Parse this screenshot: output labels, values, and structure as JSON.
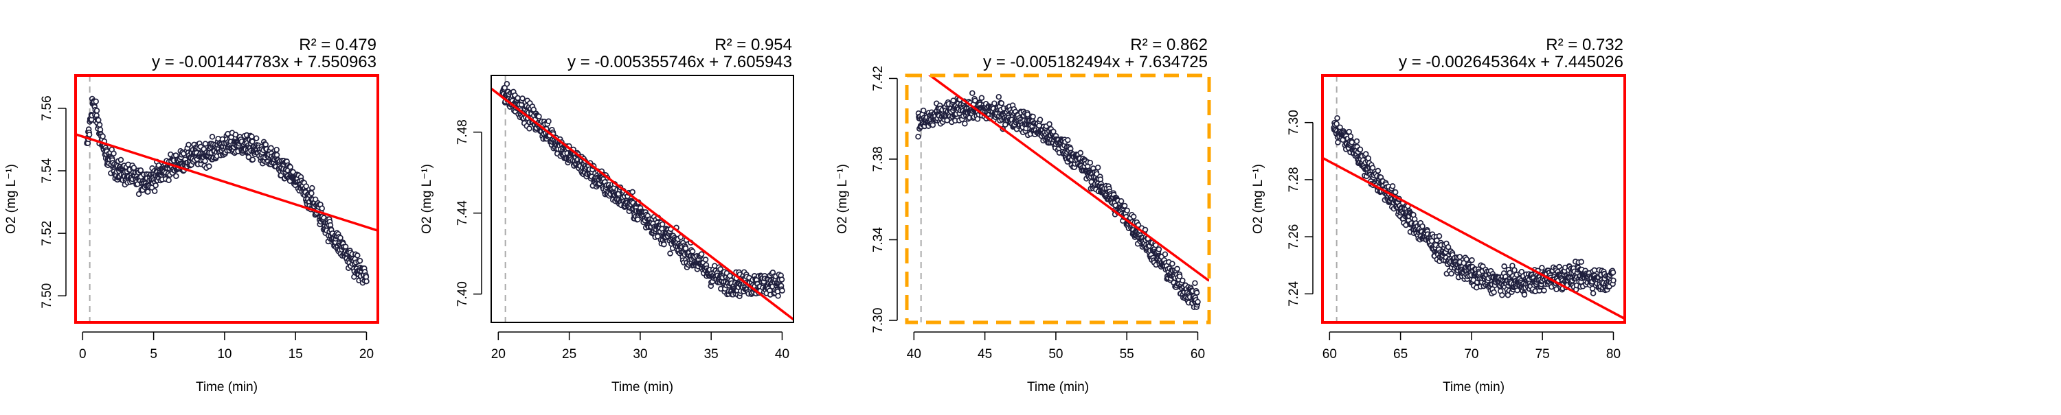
{
  "colors": {
    "points_stroke": "#1f1f3d",
    "points_fill": "#ffffff",
    "fit_line": "#ff0000",
    "frame_default": "#000000",
    "frame_red": "#ff0000",
    "frame_orange": "#ffa500",
    "start_marker": "#aaaaaa"
  },
  "chart_data": [
    {
      "type": "scatter",
      "title": "",
      "xlabel": "Time (min)",
      "ylabel": "O2 (mg L⁻¹)",
      "xlim": [
        -0.5,
        20.8
      ],
      "ylim": [
        7.4915,
        7.5705
      ],
      "xticks": [
        0,
        5,
        10,
        15,
        20
      ],
      "yticks": [
        7.5,
        7.52,
        7.54,
        7.56
      ],
      "ytick_labels": [
        "7.50",
        "7.52",
        "7.54",
        "7.56"
      ],
      "grid": false,
      "frame_style": "red",
      "start_marker_x": 0.5,
      "r_squared": "R² = 0.479",
      "equation": "y = -0.001447783x + 7.550963",
      "fit": {
        "slope": -0.001447783,
        "intercept": 7.550963
      },
      "series": [
        {
          "x": [
            0.3,
            0.7,
            1.0,
            1.3,
            1.6,
            2,
            2.5,
            3,
            3.5,
            4,
            4.5,
            5,
            5.5,
            6,
            6.5,
            7,
            7.5,
            8,
            8.5,
            9,
            9.5,
            10,
            10.5,
            11,
            11.5,
            12,
            12.5,
            13,
            13.5,
            14,
            14.5,
            15,
            15.5,
            16,
            16.5,
            17,
            17.5,
            18,
            18.5,
            19,
            19.5,
            20
          ],
          "y": [
            7.547,
            7.562,
            7.557,
            7.551,
            7.545,
            7.543,
            7.54,
            7.539,
            7.538,
            7.537,
            7.537,
            7.538,
            7.539,
            7.541,
            7.542,
            7.543,
            7.544,
            7.545,
            7.545,
            7.546,
            7.547,
            7.548,
            7.548,
            7.549,
            7.548,
            7.547,
            7.546,
            7.545,
            7.543,
            7.541,
            7.539,
            7.537,
            7.534,
            7.531,
            7.528,
            7.524,
            7.52,
            7.517,
            7.514,
            7.511,
            7.508,
            7.506
          ]
        }
      ]
    },
    {
      "type": "scatter",
      "title": "",
      "xlabel": "Time (min)",
      "ylabel": "O2 (mg L⁻¹)",
      "xlim": [
        19.5,
        40.8
      ],
      "ylim": [
        7.386,
        7.508
      ],
      "xticks": [
        20,
        25,
        30,
        35,
        40
      ],
      "yticks": [
        7.4,
        7.44,
        7.48
      ],
      "ytick_labels": [
        "7.40",
        "7.44",
        "7.48"
      ],
      "grid": false,
      "frame_style": "default",
      "start_marker_x": 20.5,
      "r_squared": "R² = 0.954",
      "equation": "y = -0.005355746x + 7.605943",
      "fit": {
        "slope": -0.005355746,
        "intercept": 7.605943
      },
      "series": [
        {
          "x": [
            20.3,
            21,
            22,
            23,
            24,
            25,
            26,
            27,
            28,
            29,
            30,
            31,
            32,
            33,
            34,
            35,
            36,
            37,
            38,
            39,
            40
          ],
          "y": [
            7.499,
            7.496,
            7.49,
            7.483,
            7.476,
            7.469,
            7.463,
            7.457,
            7.451,
            7.446,
            7.44,
            7.434,
            7.428,
            7.422,
            7.416,
            7.41,
            7.406,
            7.405,
            7.405,
            7.405,
            7.406
          ]
        }
      ]
    },
    {
      "type": "scatter",
      "title": "",
      "xlabel": "Time (min)",
      "ylabel": "O2 (mg L⁻¹)",
      "xlim": [
        39.5,
        60.8
      ],
      "ylim": [
        7.299,
        7.4215
      ],
      "xticks": [
        40,
        45,
        50,
        55,
        60
      ],
      "yticks": [
        7.3,
        7.34,
        7.38,
        7.42
      ],
      "ytick_labels": [
        "7.30",
        "7.34",
        "7.38",
        "7.42"
      ],
      "grid": false,
      "frame_style": "orange-dashed",
      "start_marker_x": 40.5,
      "r_squared": "R² = 0.862",
      "equation": "y = -0.005182494x + 7.634725",
      "fit": {
        "slope": -0.005182494,
        "intercept": 7.634725
      },
      "series": [
        {
          "x": [
            40.3,
            41,
            42,
            43,
            44,
            45,
            46,
            47,
            48,
            49,
            50,
            51,
            52,
            53,
            54,
            55,
            56,
            57,
            58,
            59,
            60
          ],
          "y": [
            7.398,
            7.399,
            7.402,
            7.404,
            7.405,
            7.404,
            7.403,
            7.401,
            7.398,
            7.394,
            7.389,
            7.383,
            7.376,
            7.368,
            7.36,
            7.351,
            7.342,
            7.333,
            7.324,
            7.316,
            7.31
          ]
        }
      ]
    },
    {
      "type": "scatter",
      "title": "",
      "xlabel": "Time (min)",
      "ylabel": "O2 (mg L⁻¹)",
      "xlim": [
        59.5,
        80.8
      ],
      "ylim": [
        7.23,
        7.3165
      ],
      "xticks": [
        60,
        65,
        70,
        75,
        80
      ],
      "yticks": [
        7.24,
        7.26,
        7.28,
        7.3
      ],
      "ytick_labels": [
        "7.24",
        "7.26",
        "7.28",
        "7.30"
      ],
      "grid": false,
      "frame_style": "red",
      "start_marker_x": 60.5,
      "r_squared": "R² = 0.732",
      "equation": "y = -0.002645364x + 7.445026",
      "fit": {
        "slope": -0.002645364,
        "intercept": 7.445026
      },
      "series": [
        {
          "x": [
            60.3,
            61,
            62,
            63,
            64,
            65,
            66,
            67,
            68,
            69,
            70,
            71,
            72,
            73,
            74,
            75,
            76,
            77,
            78,
            79,
            80
          ],
          "y": [
            7.298,
            7.295,
            7.289,
            7.282,
            7.276,
            7.27,
            7.264,
            7.259,
            7.254,
            7.25,
            7.247,
            7.245,
            7.244,
            7.244,
            7.244,
            7.245,
            7.246,
            7.246,
            7.246,
            7.245,
            7.245
          ]
        }
      ]
    }
  ]
}
